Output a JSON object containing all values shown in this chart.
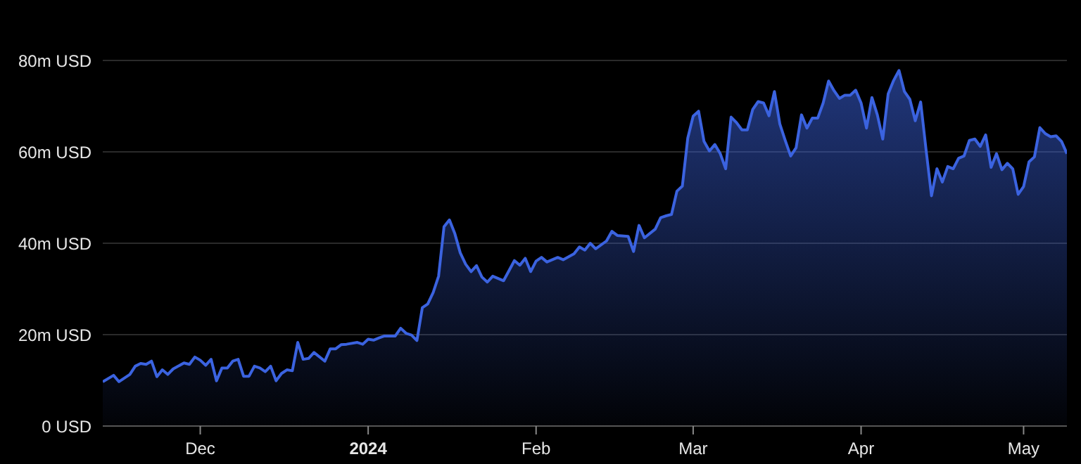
{
  "chart_data": {
    "type": "area",
    "x": [
      "2023-11-13",
      "2023-11-15",
      "2023-11-16",
      "2023-11-18",
      "2023-11-19",
      "2023-11-20",
      "2023-11-21",
      "2023-11-22",
      "2023-11-23",
      "2023-11-24",
      "2023-11-25",
      "2023-11-26",
      "2023-11-28",
      "2023-11-29",
      "2023-11-30",
      "2023-12-01",
      "2023-12-02",
      "2023-12-03",
      "2023-12-04",
      "2023-12-05",
      "2023-12-06",
      "2023-12-07",
      "2023-12-08",
      "2023-12-09",
      "2023-12-10",
      "2023-12-11",
      "2023-12-12",
      "2023-12-13",
      "2023-12-14",
      "2023-12-15",
      "2023-12-16",
      "2023-12-17",
      "2023-12-18",
      "2023-12-19",
      "2023-12-20",
      "2023-12-21",
      "2023-12-22",
      "2023-12-24",
      "2023-12-25",
      "2023-12-26",
      "2023-12-27",
      "2023-12-28",
      "2023-12-30",
      "2023-12-31",
      "2024-01-01",
      "2024-01-02",
      "2024-01-03",
      "2024-01-04",
      "2024-01-06",
      "2024-01-07",
      "2024-01-08",
      "2024-01-09",
      "2024-01-10",
      "2024-01-11",
      "2024-01-12",
      "2024-01-13",
      "2024-01-14",
      "2024-01-15",
      "2024-01-16",
      "2024-01-17",
      "2024-01-18",
      "2024-01-19",
      "2024-01-20",
      "2024-01-21",
      "2024-01-22",
      "2024-01-23",
      "2024-01-24",
      "2024-01-26",
      "2024-01-28",
      "2024-01-29",
      "2024-01-30",
      "2024-01-31",
      "2024-02-01",
      "2024-02-02",
      "2024-02-03",
      "2024-02-05",
      "2024-02-06",
      "2024-02-08",
      "2024-02-09",
      "2024-02-10",
      "2024-02-11",
      "2024-02-12",
      "2024-02-14",
      "2024-02-15",
      "2024-02-16",
      "2024-02-18",
      "2024-02-19",
      "2024-02-20",
      "2024-02-21",
      "2024-02-23",
      "2024-02-24",
      "2024-02-25",
      "2024-02-26",
      "2024-02-27",
      "2024-02-28",
      "2024-02-29",
      "2024-03-01",
      "2024-03-02",
      "2024-03-03",
      "2024-03-04",
      "2024-03-05",
      "2024-03-06",
      "2024-03-07",
      "2024-03-08",
      "2024-03-09",
      "2024-03-10",
      "2024-03-11",
      "2024-03-12",
      "2024-03-13",
      "2024-03-14",
      "2024-03-15",
      "2024-03-16",
      "2024-03-17",
      "2024-03-18",
      "2024-03-19",
      "2024-03-20",
      "2024-03-21",
      "2024-03-22",
      "2024-03-23",
      "2024-03-24",
      "2024-03-25",
      "2024-03-26",
      "2024-03-27",
      "2024-03-28",
      "2024-03-29",
      "2024-03-30",
      "2024-03-31",
      "2024-04-01",
      "2024-04-02",
      "2024-04-03",
      "2024-04-04",
      "2024-04-05",
      "2024-04-06",
      "2024-04-07",
      "2024-04-08",
      "2024-04-09",
      "2024-04-10",
      "2024-04-11",
      "2024-04-12",
      "2024-04-13",
      "2024-04-14",
      "2024-04-15",
      "2024-04-16",
      "2024-04-17",
      "2024-04-18",
      "2024-04-19",
      "2024-04-20",
      "2024-04-21",
      "2024-04-22",
      "2024-04-23",
      "2024-04-24",
      "2024-04-25",
      "2024-04-26",
      "2024-04-27",
      "2024-04-28",
      "2024-04-29",
      "2024-04-30",
      "2024-05-01",
      "2024-05-02",
      "2024-05-03",
      "2024-05-04",
      "2024-05-05",
      "2024-05-06",
      "2024-05-07",
      "2024-05-08",
      "2024-05-09"
    ],
    "series": [
      {
        "color": "#3b63e0",
        "values": [
          9.7,
          11.1,
          9.7,
          11.3,
          13.1,
          13.7,
          13.5,
          14.2,
          10.8,
          12.3,
          11.3,
          12.5,
          13.8,
          13.5,
          15.1,
          14.4,
          13.3,
          14.6,
          9.9,
          12.7,
          12.7,
          14.2,
          14.6,
          10.9,
          10.9,
          13.1,
          12.7,
          11.9,
          13.1,
          9.9,
          11.5,
          12.3,
          12.1,
          18.3,
          14.6,
          14.8,
          16.1,
          14.2,
          16.9,
          16.9,
          17.8,
          17.9,
          18.3,
          17.9,
          19.0,
          18.8,
          19.3,
          19.7,
          19.7,
          21.4,
          20.3,
          19.9,
          18.7,
          25.9,
          26.7,
          29.2,
          32.8,
          43.6,
          45.1,
          42.1,
          37.9,
          35.4,
          33.8,
          35.1,
          32.6,
          31.5,
          32.8,
          31.8,
          36.2,
          35.2,
          36.7,
          33.8,
          36.1,
          36.9,
          35.9,
          36.9,
          36.4,
          37.7,
          39.2,
          38.5,
          40.0,
          38.8,
          40.5,
          42.6,
          41.7,
          41.5,
          38.2,
          43.9,
          41.2,
          43.1,
          45.6,
          46.0,
          46.3,
          51.4,
          52.5,
          63.0,
          67.8,
          68.9,
          62.3,
          60.2,
          61.6,
          59.6,
          56.3,
          67.6,
          66.4,
          64.8,
          64.8,
          69.3,
          71.0,
          70.7,
          67.9,
          73.2,
          66.1,
          62.5,
          59.1,
          60.9,
          68.1,
          65.2,
          67.4,
          67.4,
          70.7,
          75.5,
          73.4,
          71.7,
          72.4,
          72.4,
          73.5,
          70.7,
          65.2,
          71.9,
          68.1,
          62.8,
          72.7,
          75.6,
          77.8,
          73.2,
          71.5,
          66.8,
          70.9,
          60.4,
          50.4,
          56.3,
          53.4,
          56.8,
          56.3,
          58.6,
          59.1,
          62.5,
          62.8,
          61.2,
          63.7,
          56.6,
          59.6,
          56.1,
          57.5,
          56.3,
          50.7,
          52.4,
          57.8,
          58.9,
          65.3,
          64.0,
          63.3,
          63.5,
          62.3,
          59.6
        ]
      }
    ],
    "xlim": [
      "2023-11-13",
      "2024-05-09"
    ],
    "xticks": [
      {
        "value": "2023-12-01",
        "label": "Dec"
      },
      {
        "value": "2024-01-01",
        "label": "2024"
      },
      {
        "value": "2024-02-01",
        "label": "Feb"
      },
      {
        "value": "2024-03-01",
        "label": "Mar"
      },
      {
        "value": "2024-04-01",
        "label": "Apr"
      },
      {
        "value": "2024-05-01",
        "label": "May"
      }
    ],
    "ylim": [
      0,
      80
    ],
    "yticks": [
      {
        "value": 0,
        "label": "0 USD"
      },
      {
        "value": 20,
        "label": "20m USD"
      },
      {
        "value": 40,
        "label": "40m USD"
      },
      {
        "value": 60,
        "label": "60m USD"
      },
      {
        "value": 80,
        "label": "80m USD"
      }
    ],
    "grid": "y"
  }
}
